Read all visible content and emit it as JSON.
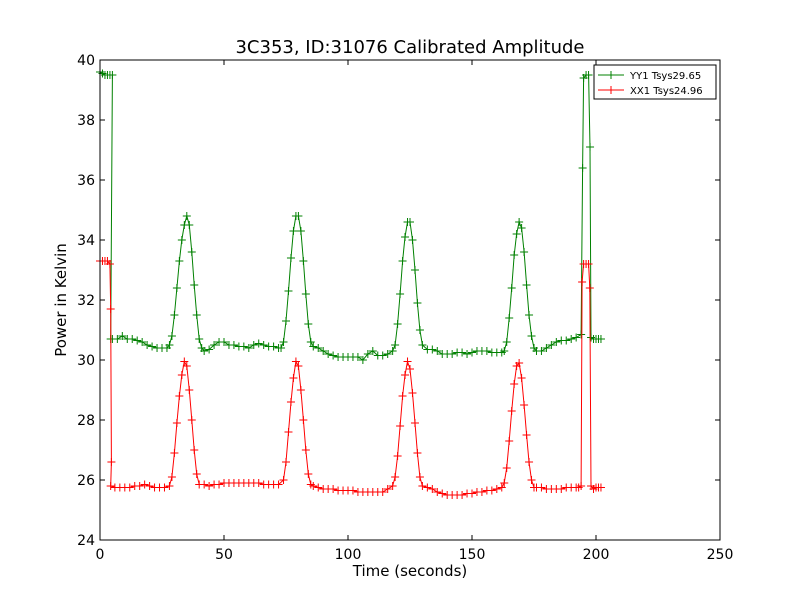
{
  "chart_data": {
    "type": "line",
    "title": "3C353, ID:31076 Calibrated Amplitude",
    "xlabel": "Time (seconds)",
    "ylabel": "Power in Kelvin",
    "xlim": [
      0,
      250
    ],
    "ylim": [
      24,
      40
    ],
    "xticks": [
      0,
      50,
      100,
      150,
      200,
      250
    ],
    "yticks": [
      24,
      26,
      28,
      30,
      32,
      34,
      36,
      38,
      40
    ],
    "legend_position": "top-right",
    "grid": false,
    "marker": "+",
    "series": [
      {
        "name": "YY1 Tsys29.65",
        "color": "#008000",
        "points": [
          [
            0,
            39.6
          ],
          [
            1,
            39.55
          ],
          [
            2,
            39.5
          ],
          [
            3,
            39.5
          ],
          [
            4,
            39.5
          ],
          [
            5,
            39.5
          ],
          [
            4.3,
            30.7
          ],
          [
            5,
            30.7
          ],
          [
            7,
            30.7
          ],
          [
            9,
            30.8
          ],
          [
            11,
            30.7
          ],
          [
            13,
            30.7
          ],
          [
            15,
            30.65
          ],
          [
            17,
            30.6
          ],
          [
            19,
            30.5
          ],
          [
            21,
            30.45
          ],
          [
            23,
            30.4
          ],
          [
            25,
            30.4
          ],
          [
            27,
            30.4
          ],
          [
            28,
            30.5
          ],
          [
            29,
            30.8
          ],
          [
            30,
            31.5
          ],
          [
            31,
            32.4
          ],
          [
            32,
            33.3
          ],
          [
            33,
            34.0
          ],
          [
            34,
            34.5
          ],
          [
            35,
            34.8
          ],
          [
            36,
            34.5
          ],
          [
            37,
            33.6
          ],
          [
            38,
            32.5
          ],
          [
            39,
            31.5
          ],
          [
            40,
            30.7
          ],
          [
            41,
            30.4
          ],
          [
            42,
            30.3
          ],
          [
            44,
            30.35
          ],
          [
            46,
            30.5
          ],
          [
            48,
            30.6
          ],
          [
            50,
            30.6
          ],
          [
            52,
            30.5
          ],
          [
            54,
            30.5
          ],
          [
            56,
            30.45
          ],
          [
            58,
            30.45
          ],
          [
            60,
            30.4
          ],
          [
            62,
            30.5
          ],
          [
            64,
            30.55
          ],
          [
            66,
            30.5
          ],
          [
            68,
            30.45
          ],
          [
            70,
            30.45
          ],
          [
            72,
            30.4
          ],
          [
            73,
            30.4
          ],
          [
            74,
            30.6
          ],
          [
            75,
            31.3
          ],
          [
            76,
            32.3
          ],
          [
            77,
            33.4
          ],
          [
            78,
            34.3
          ],
          [
            79,
            34.8
          ],
          [
            80,
            34.8
          ],
          [
            81,
            34.3
          ],
          [
            82,
            33.3
          ],
          [
            83,
            32.2
          ],
          [
            84,
            31.2
          ],
          [
            85,
            30.6
          ],
          [
            86,
            30.45
          ],
          [
            88,
            30.4
          ],
          [
            90,
            30.3
          ],
          [
            92,
            30.2
          ],
          [
            94,
            30.15
          ],
          [
            96,
            30.1
          ],
          [
            98,
            30.1
          ],
          [
            100,
            30.1
          ],
          [
            102,
            30.1
          ],
          [
            104,
            30.1
          ],
          [
            106,
            30.0
          ],
          [
            108,
            30.2
          ],
          [
            110,
            30.3
          ],
          [
            112,
            30.15
          ],
          [
            114,
            30.15
          ],
          [
            116,
            30.2
          ],
          [
            118,
            30.3
          ],
          [
            119,
            30.5
          ],
          [
            120,
            31.2
          ],
          [
            121,
            32.2
          ],
          [
            122,
            33.3
          ],
          [
            123,
            34.1
          ],
          [
            124,
            34.6
          ],
          [
            125,
            34.6
          ],
          [
            126,
            34.0
          ],
          [
            127,
            33.0
          ],
          [
            128,
            31.9
          ],
          [
            129,
            31.0
          ],
          [
            130,
            30.5
          ],
          [
            132,
            30.35
          ],
          [
            134,
            30.35
          ],
          [
            136,
            30.3
          ],
          [
            138,
            30.2
          ],
          [
            140,
            30.2
          ],
          [
            142,
            30.2
          ],
          [
            144,
            30.25
          ],
          [
            146,
            30.25
          ],
          [
            148,
            30.2
          ],
          [
            150,
            30.25
          ],
          [
            152,
            30.3
          ],
          [
            154,
            30.3
          ],
          [
            156,
            30.3
          ],
          [
            158,
            30.25
          ],
          [
            160,
            30.25
          ],
          [
            162,
            30.25
          ],
          [
            163,
            30.3
          ],
          [
            164,
            30.6
          ],
          [
            165,
            31.4
          ],
          [
            166,
            32.4
          ],
          [
            167,
            33.5
          ],
          [
            168,
            34.2
          ],
          [
            169,
            34.6
          ],
          [
            170,
            34.4
          ],
          [
            171,
            33.6
          ],
          [
            172,
            32.5
          ],
          [
            173,
            31.5
          ],
          [
            174,
            30.8
          ],
          [
            175,
            30.4
          ],
          [
            176,
            30.3
          ],
          [
            178,
            30.3
          ],
          [
            180,
            30.4
          ],
          [
            182,
            30.5
          ],
          [
            184,
            30.6
          ],
          [
            186,
            30.65
          ],
          [
            188,
            30.65
          ],
          [
            190,
            30.7
          ],
          [
            192,
            30.75
          ],
          [
            194,
            30.85
          ],
          [
            194.6,
            36.4
          ],
          [
            195,
            39.4
          ],
          [
            196,
            39.5
          ],
          [
            197,
            39.5
          ],
          [
            197.6,
            37.1
          ],
          [
            198,
            30.75
          ],
          [
            199,
            30.7
          ],
          [
            200,
            30.7
          ],
          [
            201,
            30.7
          ],
          [
            202,
            30.7
          ]
        ]
      },
      {
        "name": "XX1 Tsys24.96",
        "color": "#ff0000",
        "points": [
          [
            0,
            33.3
          ],
          [
            1,
            33.3
          ],
          [
            2,
            33.3
          ],
          [
            3,
            33.3
          ],
          [
            4,
            33.2
          ],
          [
            4.3,
            31.7
          ],
          [
            4.6,
            26.6
          ],
          [
            4.3,
            25.8
          ],
          [
            6,
            25.75
          ],
          [
            8,
            25.75
          ],
          [
            10,
            25.75
          ],
          [
            12,
            25.75
          ],
          [
            14,
            25.8
          ],
          [
            16,
            25.8
          ],
          [
            18,
            25.85
          ],
          [
            20,
            25.8
          ],
          [
            22,
            25.75
          ],
          [
            24,
            25.75
          ],
          [
            26,
            25.75
          ],
          [
            28,
            25.8
          ],
          [
            29,
            26.1
          ],
          [
            30,
            26.9
          ],
          [
            31,
            27.9
          ],
          [
            32,
            28.8
          ],
          [
            33,
            29.5
          ],
          [
            34,
            29.95
          ],
          [
            35,
            29.8
          ],
          [
            36,
            29.0
          ],
          [
            37,
            28.0
          ],
          [
            38,
            27.0
          ],
          [
            39,
            26.2
          ],
          [
            40,
            25.85
          ],
          [
            42,
            25.85
          ],
          [
            44,
            25.8
          ],
          [
            46,
            25.85
          ],
          [
            48,
            25.85
          ],
          [
            50,
            25.9
          ],
          [
            52,
            25.9
          ],
          [
            54,
            25.9
          ],
          [
            56,
            25.9
          ],
          [
            58,
            25.9
          ],
          [
            60,
            25.9
          ],
          [
            62,
            25.9
          ],
          [
            64,
            25.9
          ],
          [
            66,
            25.85
          ],
          [
            68,
            25.85
          ],
          [
            70,
            25.85
          ],
          [
            72,
            25.85
          ],
          [
            74,
            26.0
          ],
          [
            75,
            26.6
          ],
          [
            76,
            27.6
          ],
          [
            77,
            28.6
          ],
          [
            78,
            29.4
          ],
          [
            79,
            29.95
          ],
          [
            80,
            29.8
          ],
          [
            81,
            29.0
          ],
          [
            82,
            28.0
          ],
          [
            83,
            27.0
          ],
          [
            84,
            26.2
          ],
          [
            85,
            25.85
          ],
          [
            86,
            25.8
          ],
          [
            88,
            25.75
          ],
          [
            90,
            25.7
          ],
          [
            92,
            25.7
          ],
          [
            94,
            25.7
          ],
          [
            96,
            25.65
          ],
          [
            98,
            25.65
          ],
          [
            100,
            25.65
          ],
          [
            102,
            25.65
          ],
          [
            104,
            25.6
          ],
          [
            106,
            25.6
          ],
          [
            108,
            25.6
          ],
          [
            110,
            25.6
          ],
          [
            112,
            25.6
          ],
          [
            114,
            25.6
          ],
          [
            116,
            25.7
          ],
          [
            118,
            25.8
          ],
          [
            119,
            26.1
          ],
          [
            120,
            26.8
          ],
          [
            121,
            27.8
          ],
          [
            122,
            28.8
          ],
          [
            123,
            29.5
          ],
          [
            124,
            29.95
          ],
          [
            125,
            29.7
          ],
          [
            126,
            28.9
          ],
          [
            127,
            27.9
          ],
          [
            128,
            26.9
          ],
          [
            129,
            26.1
          ],
          [
            130,
            25.8
          ],
          [
            132,
            25.75
          ],
          [
            134,
            25.7
          ],
          [
            136,
            25.6
          ],
          [
            138,
            25.55
          ],
          [
            140,
            25.5
          ],
          [
            142,
            25.5
          ],
          [
            144,
            25.5
          ],
          [
            146,
            25.5
          ],
          [
            148,
            25.55
          ],
          [
            150,
            25.55
          ],
          [
            152,
            25.6
          ],
          [
            154,
            25.6
          ],
          [
            156,
            25.65
          ],
          [
            158,
            25.65
          ],
          [
            160,
            25.7
          ],
          [
            162,
            25.75
          ],
          [
            163,
            25.9
          ],
          [
            164,
            26.4
          ],
          [
            165,
            27.3
          ],
          [
            166,
            28.3
          ],
          [
            167,
            29.2
          ],
          [
            168,
            29.8
          ],
          [
            169,
            29.9
          ],
          [
            170,
            29.4
          ],
          [
            171,
            28.5
          ],
          [
            172,
            27.5
          ],
          [
            173,
            26.6
          ],
          [
            174,
            26.0
          ],
          [
            175,
            25.75
          ],
          [
            176,
            25.75
          ],
          [
            178,
            25.75
          ],
          [
            180,
            25.7
          ],
          [
            182,
            25.7
          ],
          [
            184,
            25.7
          ],
          [
            186,
            25.7
          ],
          [
            188,
            25.75
          ],
          [
            190,
            25.75
          ],
          [
            192,
            25.75
          ],
          [
            193,
            25.75
          ],
          [
            194,
            25.8
          ],
          [
            194.4,
            32.6
          ],
          [
            195,
            33.2
          ],
          [
            196,
            33.2
          ],
          [
            197,
            33.2
          ],
          [
            197.5,
            32.4
          ],
          [
            198,
            25.8
          ],
          [
            199,
            25.7
          ],
          [
            200,
            25.75
          ],
          [
            201,
            25.75
          ],
          [
            202,
            25.75
          ]
        ]
      }
    ]
  }
}
